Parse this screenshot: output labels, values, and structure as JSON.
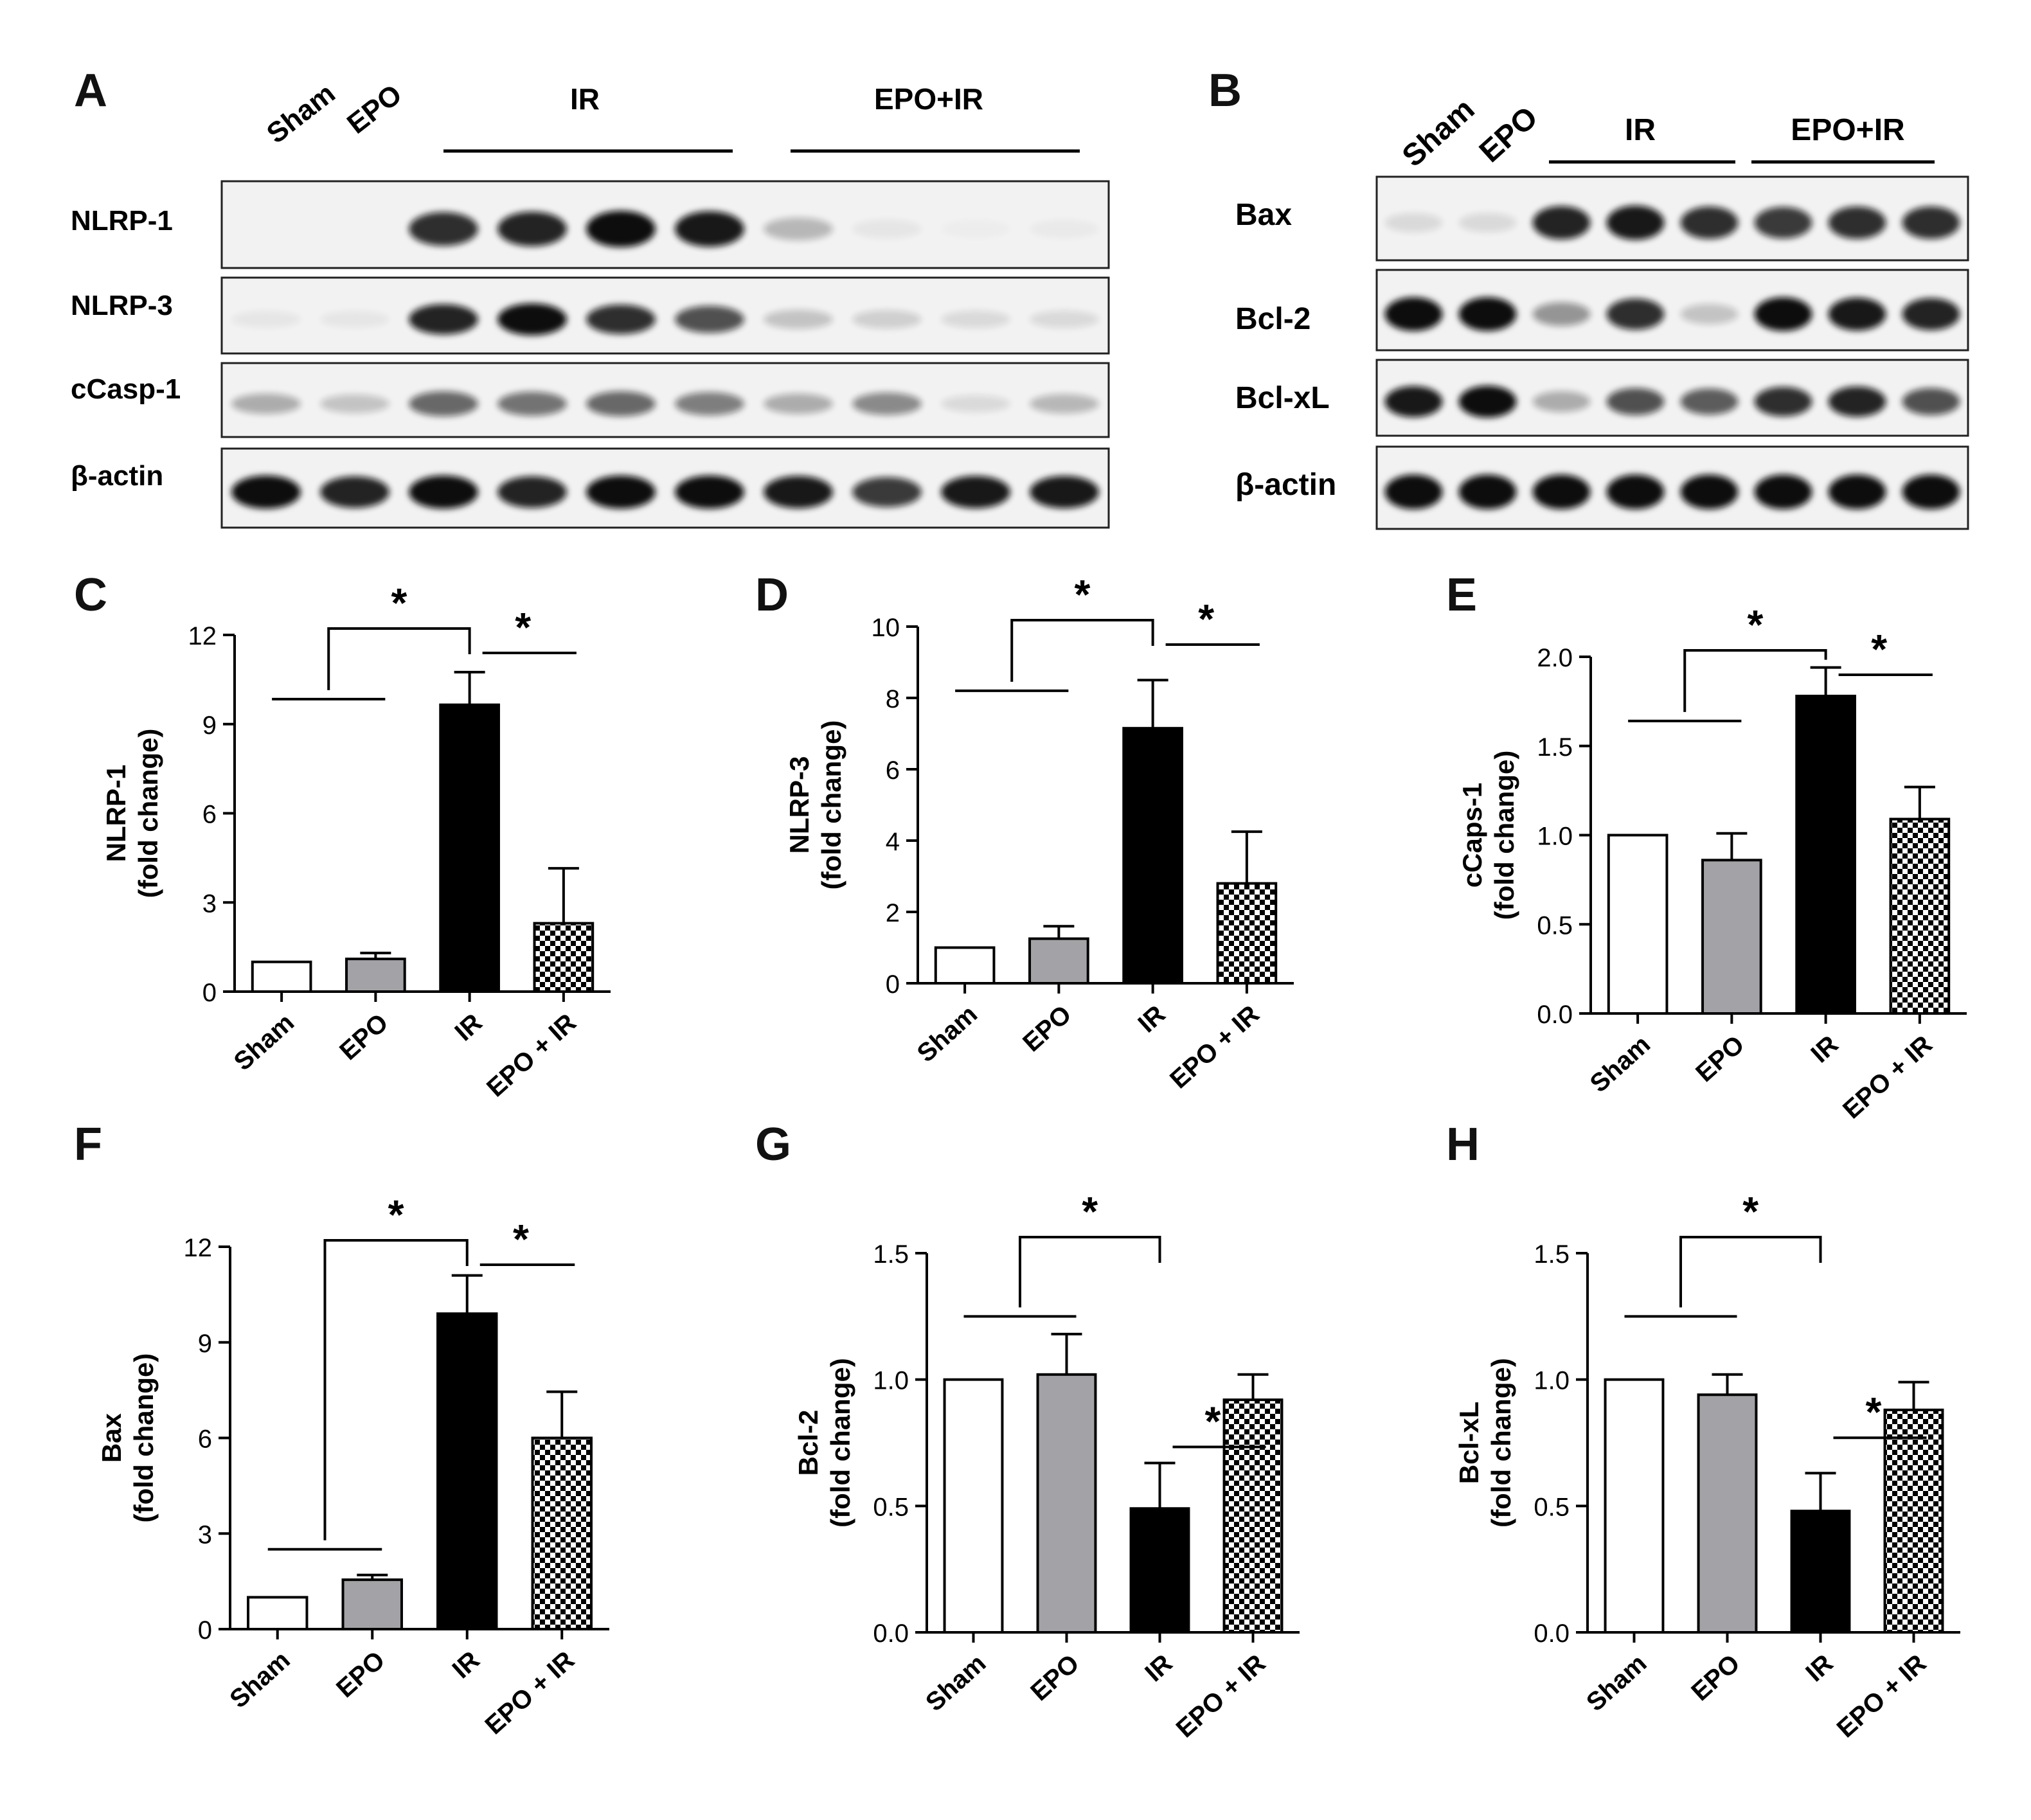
{
  "figure": {
    "panel_letters": [
      "A",
      "B",
      "C",
      "D",
      "E",
      "F",
      "G",
      "H"
    ]
  },
  "blot_a": {
    "letter": "A",
    "col_labels": [
      "Sham",
      "EPO"
    ],
    "group_labels": [
      "IR",
      "EPO+IR"
    ],
    "rows": [
      "NLRP-1",
      "NLRP-3",
      "cCasp-1",
      "β-actin"
    ],
    "lane_intensity": [
      [
        0.0,
        0.0,
        0.85,
        0.9,
        1.0,
        0.95,
        0.25,
        0.05,
        0.02,
        0.03
      ],
      [
        0.05,
        0.05,
        0.9,
        1.0,
        0.85,
        0.7,
        0.2,
        0.15,
        0.1,
        0.1
      ],
      [
        0.3,
        0.2,
        0.6,
        0.55,
        0.6,
        0.5,
        0.3,
        0.45,
        0.1,
        0.25
      ],
      [
        1.0,
        0.9,
        1.0,
        0.9,
        1.0,
        1.0,
        0.95,
        0.8,
        0.95,
        0.95
      ]
    ]
  },
  "blot_b": {
    "letter": "B",
    "col_labels": [
      "Sham",
      "EPO"
    ],
    "group_labels": [
      "IR",
      "EPO+IR"
    ],
    "rows": [
      "Bax",
      "Bcl-2",
      "Bcl-xL",
      "β-actin"
    ],
    "lane_intensity": [
      [
        0.1,
        0.1,
        0.9,
        0.95,
        0.85,
        0.8,
        0.85,
        0.85
      ],
      [
        1.0,
        1.0,
        0.4,
        0.85,
        0.2,
        1.0,
        0.95,
        0.9
      ],
      [
        0.95,
        1.0,
        0.3,
        0.7,
        0.65,
        0.85,
        0.9,
        0.7
      ],
      [
        1.0,
        1.0,
        1.0,
        1.0,
        1.0,
        1.0,
        1.0,
        1.0
      ]
    ]
  },
  "chart_data": [
    {
      "letter": "C",
      "type": "bar",
      "categories": [
        "Sham",
        "EPO",
        "IR",
        "EPO + IR"
      ],
      "values": [
        1.0,
        1.1,
        9.65,
        2.3
      ],
      "errors": [
        0,
        0.2,
        1.1,
        1.85
      ],
      "ylabel": "NLRP-1",
      "ylabel2": "(fold change)",
      "ylim": [
        0,
        12
      ],
      "yticks": [
        "0",
        "3",
        "6",
        "9",
        "12"
      ],
      "significance": "*"
    },
    {
      "letter": "D",
      "type": "bar",
      "categories": [
        "Sham",
        "EPO",
        "IR",
        "EPO + IR"
      ],
      "values": [
        1.0,
        1.25,
        7.15,
        2.8
      ],
      "errors": [
        0,
        0.35,
        1.35,
        1.45
      ],
      "ylabel": "NLRP-3",
      "ylabel2": "(fold change)",
      "ylim": [
        0,
        10
      ],
      "yticks": [
        "0",
        "2",
        "4",
        "6",
        "8",
        "10"
      ],
      "significance": "*"
    },
    {
      "letter": "E",
      "type": "bar",
      "categories": [
        "Sham",
        "EPO",
        "IR",
        "EPO + IR"
      ],
      "values": [
        1.0,
        0.86,
        1.78,
        1.09
      ],
      "errors": [
        0,
        0.15,
        0.16,
        0.18
      ],
      "ylabel": "cCaps-1",
      "ylabel2": "(fold change)",
      "ylim": [
        0,
        2.0
      ],
      "yticks": [
        "0.0",
        "0.5",
        "1.0",
        "1.5",
        "2.0"
      ],
      "significance": "*"
    },
    {
      "letter": "F",
      "type": "bar",
      "categories": [
        "Sham",
        "EPO",
        "IR",
        "EPO + IR"
      ],
      "values": [
        1.0,
        1.55,
        9.9,
        6.0
      ],
      "errors": [
        0,
        0.15,
        1.2,
        1.45
      ],
      "ylabel": "Bax",
      "ylabel2": "(fold change)",
      "ylim": [
        0,
        12
      ],
      "yticks": [
        "0",
        "3",
        "6",
        "9",
        "12"
      ],
      "significance": "*"
    },
    {
      "letter": "G",
      "type": "bar",
      "categories": [
        "Sham",
        "EPO",
        "IR",
        "EPO + IR"
      ],
      "values": [
        1.0,
        1.02,
        0.49,
        0.92
      ],
      "errors": [
        0,
        0.16,
        0.18,
        0.1
      ],
      "ylabel": "Bcl-2",
      "ylabel2": "(fold change)",
      "ylim": [
        0,
        1.5
      ],
      "yticks": [
        "0.0",
        "0.5",
        "1.0",
        "1.5"
      ],
      "significance": "*"
    },
    {
      "letter": "H",
      "type": "bar",
      "categories": [
        "Sham",
        "EPO",
        "IR",
        "EPO + IR"
      ],
      "values": [
        1.0,
        0.94,
        0.48,
        0.88
      ],
      "errors": [
        0,
        0.08,
        0.15,
        0.11
      ],
      "ylabel": "Bcl-xL",
      "ylabel2": "(fold change)",
      "ylim": [
        0,
        1.5
      ],
      "yticks": [
        "0.0",
        "0.5",
        "1.0",
        "1.5"
      ],
      "significance": "*"
    }
  ],
  "style": {
    "bar_fills": [
      "#ffffff",
      "#a3a3a7",
      "#000000",
      "checker"
    ],
    "band_color": "#0a0a0a",
    "blot_bg": "#f2f2f2"
  }
}
